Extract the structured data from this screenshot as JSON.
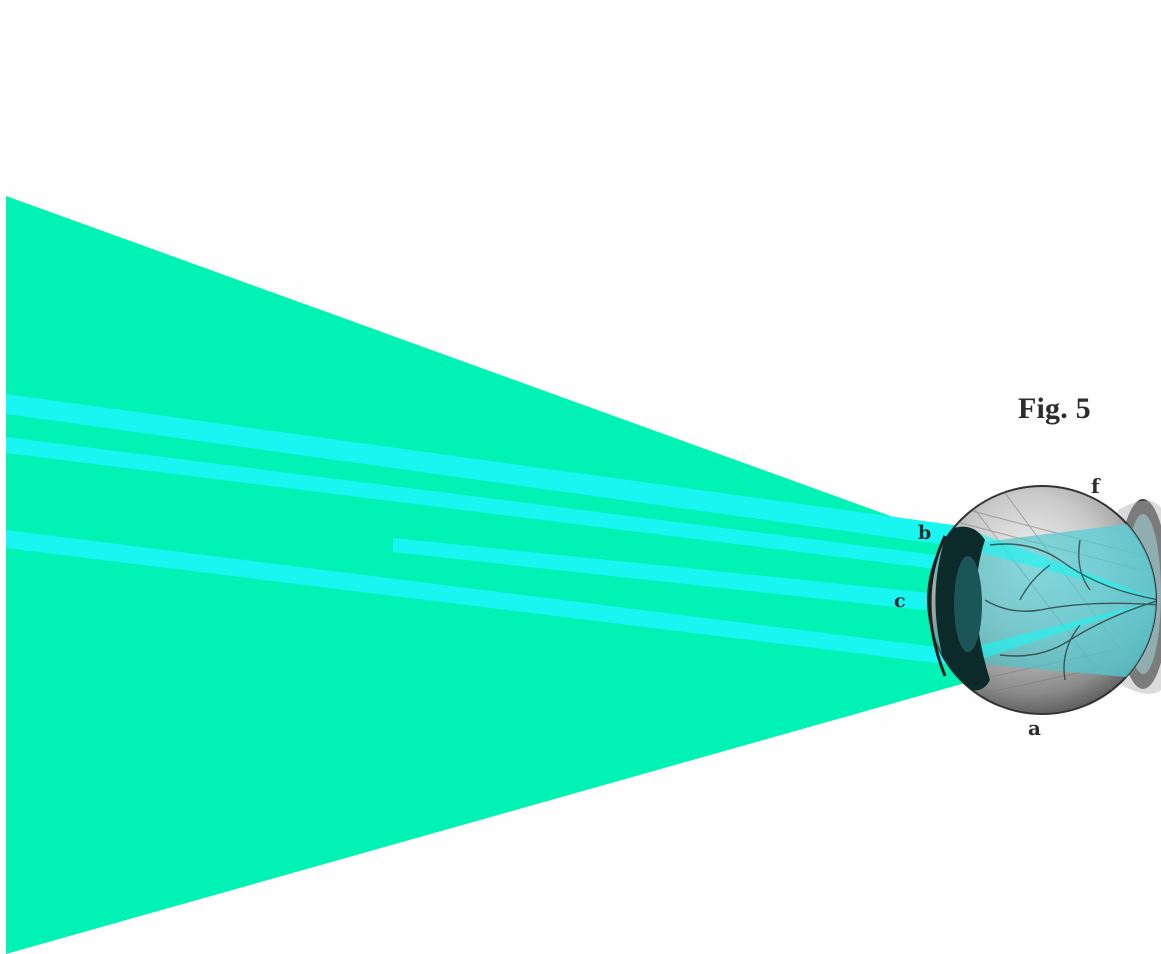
{
  "figure": {
    "title": "Fig. 5",
    "labels": {
      "a": "a",
      "b": "b",
      "c": "c",
      "f": "f"
    }
  },
  "colors": {
    "background": "#fefefe",
    "light_cone": "#00f2b4",
    "light_rays": "#19f6f2",
    "eyeball_highlight": "#f2f2f2",
    "eyeball_shadow": "#5e5e5e",
    "cornea_dark": "#0d2a2a",
    "vessels": "#3a3a3a"
  },
  "icons": {
    "eye": "eyeball-illustration"
  }
}
